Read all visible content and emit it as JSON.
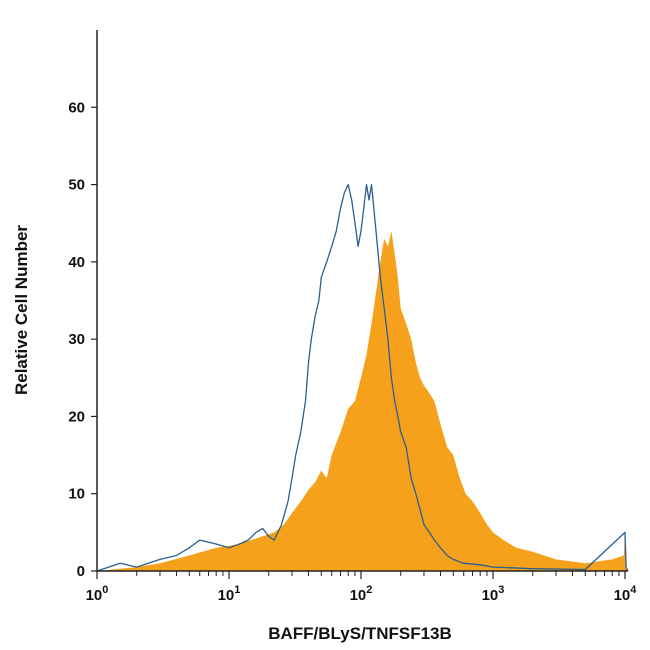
{
  "chart_data": {
    "type": "area",
    "xlabel": "BAFF/BLyS/TNFSF13B",
    "ylabel": "Relative Cell Number",
    "xscale": "log",
    "xlim": [
      1,
      12000
    ],
    "ylim": [
      0,
      70
    ],
    "grid": false,
    "legend": "none",
    "y_ticks": [
      0,
      10,
      20,
      30,
      40,
      50,
      60
    ],
    "x_ticks": [
      {
        "value": 1,
        "base": "10",
        "exp": "0"
      },
      {
        "value": 10,
        "base": "10",
        "exp": "1"
      },
      {
        "value": 100,
        "base": "10",
        "exp": "2"
      },
      {
        "value": 1000,
        "base": "10",
        "exp": "3"
      },
      {
        "value": 10000,
        "base": "10",
        "exp": "4"
      }
    ],
    "series": [
      {
        "style": "filled",
        "color": "#f5a11c",
        "x": [
          1,
          2,
          3,
          5,
          8,
          12,
          18,
          22,
          26,
          30,
          35,
          40,
          45,
          50,
          55,
          60,
          70,
          80,
          90,
          100,
          110,
          120,
          130,
          140,
          150,
          160,
          170,
          180,
          190,
          200,
          220,
          240,
          260,
          280,
          300,
          330,
          360,
          400,
          450,
          500,
          560,
          620,
          700,
          800,
          900,
          1000,
          1200,
          1500,
          2000,
          3000,
          5000,
          8000,
          9800,
          10000,
          10200,
          10500
        ],
        "y": [
          0,
          0.5,
          1,
          2,
          3,
          3.5,
          4.5,
          5,
          6,
          7.5,
          9,
          10.5,
          11.5,
          13,
          12,
          15,
          18,
          21,
          22,
          25,
          28,
          32,
          36,
          40,
          43,
          42,
          44,
          41,
          38,
          34,
          32,
          30,
          27,
          25,
          24,
          23,
          22,
          19,
          16,
          15,
          12,
          10,
          9,
          7.5,
          6,
          5,
          4,
          3,
          2.5,
          1.5,
          1,
          1.5,
          2,
          5,
          0.5,
          0
        ]
      },
      {
        "style": "outline",
        "color": "#2a5f8f",
        "x": [
          1,
          1.5,
          2,
          3,
          4,
          5,
          6,
          8,
          10,
          12,
          14,
          16,
          18,
          20,
          22,
          25,
          28,
          30,
          32,
          35,
          38,
          40,
          42,
          45,
          48,
          50,
          55,
          60,
          65,
          70,
          75,
          80,
          85,
          90,
          95,
          100,
          105,
          110,
          115,
          120,
          125,
          130,
          140,
          150,
          160,
          170,
          180,
          190,
          200,
          220,
          240,
          260,
          280,
          300,
          330,
          360,
          400,
          450,
          500,
          600,
          800,
          1000,
          2000,
          5000,
          10000,
          10200,
          10500
        ],
        "y": [
          0,
          1,
          0.5,
          1.5,
          2,
          3,
          4,
          3.5,
          3,
          3.5,
          4,
          5,
          5.5,
          4.5,
          4,
          6,
          9,
          12,
          15,
          18,
          22,
          27,
          30,
          33,
          35,
          38,
          40,
          42,
          44,
          47,
          49,
          50,
          48,
          45,
          42,
          44,
          47,
          50,
          48,
          50,
          47,
          44,
          38,
          34,
          30,
          25,
          22,
          20,
          18,
          16,
          12,
          10,
          8,
          6,
          5,
          4,
          3,
          2,
          1.5,
          1,
          0.8,
          0.5,
          0.3,
          0.2,
          5,
          0.5,
          0
        ]
      }
    ]
  }
}
